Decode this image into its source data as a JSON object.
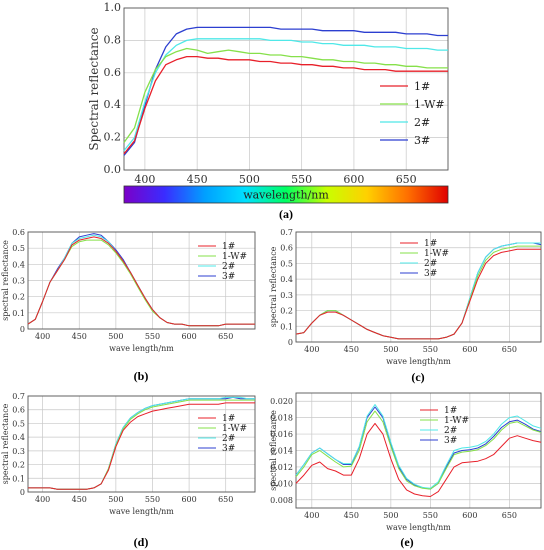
{
  "colors": {
    "s1": "#e8202a",
    "s1w": "#86e04a",
    "s2": "#4fe8e8",
    "s3": "#2c3fd0",
    "grid": "#c8c8c8",
    "frame": "#555555"
  },
  "colorbar": {
    "label": "wavelength/nm",
    "colors": [
      "#7b00c8",
      "#3a2cff",
      "#00a0ff",
      "#00e0ff",
      "#00ff60",
      "#c8ff00",
      "#ffd000",
      "#ff7000",
      "#e00000"
    ]
  },
  "chart_data": [
    {
      "id": "a",
      "panel_label": "(a)",
      "type": "line",
      "xlabel": "",
      "ylabel": "Spectral reflectance",
      "xlim": [
        380,
        690
      ],
      "ylim": [
        0,
        1.0
      ],
      "xticks": [
        400,
        450,
        500,
        550,
        600,
        650
      ],
      "yticks": [
        0.0,
        0.2,
        0.4,
        0.6,
        0.8,
        1.0
      ],
      "ytick_labels": [
        "0.0",
        "0.2",
        "0.4",
        "0.6",
        "0.8",
        "1.0"
      ],
      "grid": true,
      "legend": "right",
      "x": [
        380,
        390,
        400,
        410,
        420,
        430,
        440,
        450,
        460,
        470,
        480,
        490,
        500,
        510,
        520,
        530,
        540,
        550,
        560,
        570,
        580,
        590,
        600,
        610,
        620,
        630,
        640,
        650,
        660,
        670,
        680,
        690
      ],
      "series": [
        {
          "name": "1#",
          "key": "s1",
          "values": [
            0.1,
            0.18,
            0.38,
            0.55,
            0.65,
            0.68,
            0.7,
            0.7,
            0.69,
            0.69,
            0.68,
            0.68,
            0.68,
            0.67,
            0.67,
            0.66,
            0.66,
            0.65,
            0.65,
            0.64,
            0.64,
            0.63,
            0.63,
            0.62,
            0.62,
            0.62,
            0.61,
            0.61,
            0.61,
            0.61,
            0.61,
            0.61
          ]
        },
        {
          "name": "1-W#",
          "key": "s1w",
          "values": [
            0.17,
            0.26,
            0.48,
            0.62,
            0.7,
            0.73,
            0.75,
            0.74,
            0.72,
            0.73,
            0.74,
            0.73,
            0.72,
            0.72,
            0.71,
            0.71,
            0.7,
            0.7,
            0.69,
            0.68,
            0.68,
            0.67,
            0.67,
            0.66,
            0.66,
            0.65,
            0.65,
            0.64,
            0.64,
            0.63,
            0.63,
            0.63
          ]
        },
        {
          "name": "2#",
          "key": "s2",
          "values": [
            0.12,
            0.2,
            0.42,
            0.6,
            0.71,
            0.77,
            0.8,
            0.81,
            0.81,
            0.81,
            0.81,
            0.81,
            0.81,
            0.81,
            0.8,
            0.8,
            0.8,
            0.79,
            0.79,
            0.78,
            0.78,
            0.77,
            0.77,
            0.77,
            0.76,
            0.76,
            0.76,
            0.75,
            0.75,
            0.75,
            0.74,
            0.74
          ]
        },
        {
          "name": "3#",
          "key": "s3",
          "values": [
            0.09,
            0.17,
            0.4,
            0.62,
            0.76,
            0.84,
            0.87,
            0.88,
            0.88,
            0.88,
            0.88,
            0.88,
            0.88,
            0.88,
            0.88,
            0.87,
            0.87,
            0.87,
            0.87,
            0.86,
            0.86,
            0.86,
            0.86,
            0.85,
            0.85,
            0.85,
            0.85,
            0.84,
            0.84,
            0.84,
            0.83,
            0.83
          ]
        }
      ]
    },
    {
      "id": "b",
      "panel_label": "(b)",
      "type": "line",
      "xlabel": "wave length/nm",
      "ylabel": "spectral reflectance",
      "xlim": [
        380,
        690
      ],
      "ylim": [
        0,
        0.6
      ],
      "xticks": [
        400,
        450,
        500,
        550,
        600,
        650
      ],
      "yticks": [
        0,
        0.1,
        0.2,
        0.3,
        0.4,
        0.5,
        0.6
      ],
      "ytick_labels": [
        "0",
        "0.1",
        "0.2",
        "0.3",
        "0.4",
        "0.5",
        "0.6"
      ],
      "grid": true,
      "legend": "right",
      "x": [
        380,
        390,
        400,
        410,
        420,
        430,
        440,
        450,
        460,
        470,
        480,
        490,
        500,
        510,
        520,
        530,
        540,
        550,
        560,
        570,
        580,
        590,
        600,
        610,
        620,
        630,
        640,
        650,
        660,
        670,
        680,
        690
      ],
      "series": [
        {
          "name": "1#",
          "key": "s1",
          "values": [
            0.03,
            0.06,
            0.17,
            0.29,
            0.36,
            0.43,
            0.52,
            0.55,
            0.56,
            0.57,
            0.56,
            0.53,
            0.48,
            0.42,
            0.35,
            0.27,
            0.19,
            0.12,
            0.07,
            0.04,
            0.03,
            0.03,
            0.02,
            0.02,
            0.02,
            0.02,
            0.02,
            0.03,
            0.03,
            0.03,
            0.03,
            0.03
          ]
        },
        {
          "name": "1-W#",
          "key": "s1w",
          "values": [
            0.03,
            0.06,
            0.17,
            0.29,
            0.36,
            0.43,
            0.51,
            0.54,
            0.55,
            0.55,
            0.55,
            0.52,
            0.47,
            0.41,
            0.34,
            0.26,
            0.18,
            0.11,
            0.07,
            0.04,
            0.03,
            0.03,
            0.02,
            0.02,
            0.02,
            0.02,
            0.02,
            0.03,
            0.03,
            0.03,
            0.03,
            0.03
          ]
        },
        {
          "name": "2#",
          "key": "s2",
          "values": [
            0.03,
            0.06,
            0.17,
            0.29,
            0.36,
            0.44,
            0.53,
            0.56,
            0.57,
            0.58,
            0.57,
            0.54,
            0.48,
            0.42,
            0.35,
            0.27,
            0.19,
            0.12,
            0.07,
            0.04,
            0.03,
            0.03,
            0.02,
            0.02,
            0.02,
            0.02,
            0.02,
            0.03,
            0.03,
            0.03,
            0.03,
            0.03
          ]
        },
        {
          "name": "3#",
          "key": "s3",
          "values": [
            0.03,
            0.06,
            0.17,
            0.29,
            0.37,
            0.44,
            0.53,
            0.57,
            0.58,
            0.59,
            0.58,
            0.54,
            0.49,
            0.43,
            0.35,
            0.27,
            0.19,
            0.12,
            0.07,
            0.04,
            0.03,
            0.03,
            0.02,
            0.02,
            0.02,
            0.02,
            0.02,
            0.03,
            0.03,
            0.03,
            0.03,
            0.03
          ]
        }
      ]
    },
    {
      "id": "c",
      "panel_label": "(c)",
      "type": "line",
      "xlabel": "wave length/nm",
      "ylabel": "spectral reflectance",
      "xlim": [
        380,
        690
      ],
      "ylim": [
        0,
        0.7
      ],
      "xticks": [
        400,
        450,
        500,
        550,
        600,
        650
      ],
      "yticks": [
        0,
        0.1,
        0.2,
        0.3,
        0.4,
        0.5,
        0.6,
        0.7
      ],
      "ytick_labels": [
        "0",
        "0.1",
        "0.2",
        "0.3",
        "0.4",
        "0.5",
        "0.6",
        "0.7"
      ],
      "grid": true,
      "legend": "left",
      "x": [
        380,
        390,
        400,
        410,
        420,
        430,
        440,
        450,
        460,
        470,
        480,
        490,
        500,
        510,
        520,
        530,
        540,
        550,
        560,
        570,
        580,
        590,
        600,
        610,
        620,
        630,
        640,
        650,
        660,
        670,
        680,
        690
      ],
      "series": [
        {
          "name": "1#",
          "key": "s1",
          "values": [
            0.05,
            0.06,
            0.12,
            0.17,
            0.19,
            0.19,
            0.17,
            0.14,
            0.11,
            0.08,
            0.06,
            0.04,
            0.03,
            0.02,
            0.02,
            0.02,
            0.02,
            0.02,
            0.02,
            0.03,
            0.05,
            0.12,
            0.26,
            0.4,
            0.5,
            0.55,
            0.57,
            0.58,
            0.59,
            0.59,
            0.59,
            0.59
          ]
        },
        {
          "name": "1-W#",
          "key": "s1w",
          "values": [
            0.05,
            0.06,
            0.12,
            0.17,
            0.2,
            0.2,
            0.17,
            0.14,
            0.11,
            0.08,
            0.06,
            0.04,
            0.03,
            0.02,
            0.02,
            0.02,
            0.02,
            0.02,
            0.02,
            0.03,
            0.05,
            0.12,
            0.27,
            0.42,
            0.52,
            0.57,
            0.59,
            0.6,
            0.61,
            0.61,
            0.61,
            0.61
          ]
        },
        {
          "name": "2#",
          "key": "s2",
          "values": [
            0.05,
            0.06,
            0.12,
            0.17,
            0.2,
            0.2,
            0.17,
            0.14,
            0.11,
            0.08,
            0.06,
            0.04,
            0.03,
            0.02,
            0.02,
            0.02,
            0.02,
            0.02,
            0.02,
            0.03,
            0.05,
            0.12,
            0.28,
            0.44,
            0.54,
            0.59,
            0.61,
            0.62,
            0.63,
            0.63,
            0.63,
            0.63
          ]
        },
        {
          "name": "3#",
          "key": "s3",
          "values": [
            0.05,
            0.06,
            0.12,
            0.17,
            0.2,
            0.2,
            0.17,
            0.14,
            0.11,
            0.08,
            0.06,
            0.04,
            0.03,
            0.02,
            0.02,
            0.02,
            0.02,
            0.02,
            0.02,
            0.03,
            0.05,
            0.12,
            0.28,
            0.44,
            0.54,
            0.59,
            0.61,
            0.62,
            0.63,
            0.63,
            0.63,
            0.62
          ]
        }
      ]
    },
    {
      "id": "d",
      "panel_label": "(d)",
      "type": "line",
      "xlabel": "wave length/nm",
      "ylabel": "spectral reflectance",
      "xlim": [
        380,
        690
      ],
      "ylim": [
        0,
        0.7
      ],
      "xticks": [
        400,
        450,
        500,
        550,
        600,
        650
      ],
      "yticks": [
        0,
        0.1,
        0.2,
        0.3,
        0.4,
        0.5,
        0.6,
        0.7
      ],
      "ytick_labels": [
        "0",
        "0.1",
        "0.2",
        "0.3",
        "0.4",
        "0.5",
        "0.6",
        "0.7"
      ],
      "grid": true,
      "legend": "right",
      "x": [
        380,
        390,
        400,
        410,
        420,
        430,
        440,
        450,
        460,
        470,
        480,
        490,
        500,
        510,
        520,
        530,
        540,
        550,
        560,
        570,
        580,
        590,
        600,
        610,
        620,
        630,
        640,
        650,
        660,
        670,
        680,
        690
      ],
      "series": [
        {
          "name": "1#",
          "key": "s1",
          "values": [
            0.03,
            0.03,
            0.03,
            0.03,
            0.02,
            0.02,
            0.02,
            0.02,
            0.02,
            0.03,
            0.06,
            0.16,
            0.33,
            0.45,
            0.51,
            0.55,
            0.57,
            0.59,
            0.6,
            0.61,
            0.62,
            0.63,
            0.64,
            0.64,
            0.64,
            0.64,
            0.64,
            0.65,
            0.65,
            0.65,
            0.65,
            0.65
          ]
        },
        {
          "name": "1-W#",
          "key": "s1w",
          "values": [
            0.03,
            0.03,
            0.03,
            0.03,
            0.02,
            0.02,
            0.02,
            0.02,
            0.02,
            0.03,
            0.06,
            0.17,
            0.34,
            0.46,
            0.53,
            0.57,
            0.6,
            0.62,
            0.63,
            0.64,
            0.65,
            0.66,
            0.67,
            0.67,
            0.67,
            0.67,
            0.67,
            0.67,
            0.67,
            0.67,
            0.67,
            0.67
          ]
        },
        {
          "name": "2#",
          "key": "s2",
          "values": [
            0.03,
            0.03,
            0.03,
            0.03,
            0.02,
            0.02,
            0.02,
            0.02,
            0.02,
            0.03,
            0.06,
            0.17,
            0.35,
            0.47,
            0.54,
            0.58,
            0.61,
            0.63,
            0.64,
            0.65,
            0.66,
            0.67,
            0.68,
            0.68,
            0.68,
            0.68,
            0.68,
            0.69,
            0.69,
            0.69,
            0.68,
            0.68
          ]
        },
        {
          "name": "3#",
          "key": "s3",
          "values": [
            0.03,
            0.03,
            0.03,
            0.03,
            0.02,
            0.02,
            0.02,
            0.02,
            0.02,
            0.03,
            0.06,
            0.17,
            0.35,
            0.47,
            0.54,
            0.58,
            0.61,
            0.63,
            0.64,
            0.65,
            0.66,
            0.67,
            0.68,
            0.68,
            0.68,
            0.68,
            0.68,
            0.68,
            0.69,
            0.68,
            0.68,
            0.68
          ]
        }
      ]
    },
    {
      "id": "e",
      "panel_label": "(e)",
      "type": "line",
      "xlabel": "wave length/nm",
      "ylabel": "spectral reflectance",
      "xlim": [
        380,
        690
      ],
      "ylim": [
        0.007,
        0.021
      ],
      "xticks": [
        400,
        450,
        500,
        550,
        600,
        650
      ],
      "yticks": [
        0.008,
        0.01,
        0.012,
        0.014,
        0.016,
        0.018,
        0.02
      ],
      "ytick_labels": [
        "0.008",
        "0.010",
        "0.012",
        "0.014",
        "0.016",
        "0.018",
        "0.020"
      ],
      "grid": true,
      "legend": "center",
      "x": [
        380,
        390,
        400,
        410,
        420,
        430,
        440,
        450,
        460,
        470,
        480,
        490,
        500,
        510,
        520,
        530,
        540,
        550,
        560,
        570,
        580,
        590,
        600,
        610,
        620,
        630,
        640,
        650,
        660,
        670,
        680,
        690
      ],
      "series": [
        {
          "name": "1#",
          "key": "s1",
          "values": [
            0.01,
            0.011,
            0.0122,
            0.0126,
            0.0118,
            0.0115,
            0.011,
            0.011,
            0.013,
            0.016,
            0.0173,
            0.016,
            0.013,
            0.0105,
            0.0092,
            0.0087,
            0.0085,
            0.0084,
            0.009,
            0.0105,
            0.012,
            0.0125,
            0.0126,
            0.0127,
            0.013,
            0.0135,
            0.0145,
            0.0155,
            0.0158,
            0.0155,
            0.0152,
            0.015
          ]
        },
        {
          "name": "1-W#",
          "key": "s1w",
          "values": [
            0.0108,
            0.012,
            0.0135,
            0.014,
            0.0133,
            0.0126,
            0.012,
            0.0121,
            0.014,
            0.0175,
            0.0188,
            0.0175,
            0.0145,
            0.0118,
            0.0103,
            0.0097,
            0.0094,
            0.0093,
            0.01,
            0.0118,
            0.0135,
            0.0138,
            0.0139,
            0.0141,
            0.0146,
            0.0154,
            0.0165,
            0.0173,
            0.0175,
            0.017,
            0.0165,
            0.0162
          ]
        },
        {
          "name": "2#",
          "key": "s2",
          "values": [
            0.011,
            0.0123,
            0.0137,
            0.0143,
            0.0136,
            0.0129,
            0.0124,
            0.0124,
            0.0145,
            0.0182,
            0.0196,
            0.0182,
            0.015,
            0.0122,
            0.0106,
            0.0099,
            0.0095,
            0.0094,
            0.0102,
            0.0122,
            0.014,
            0.0143,
            0.0144,
            0.0146,
            0.0151,
            0.016,
            0.0172,
            0.018,
            0.0182,
            0.0176,
            0.017,
            0.0167
          ]
        },
        {
          "name": "3#",
          "key": "s3",
          "values": [
            0.011,
            0.0123,
            0.0137,
            0.0143,
            0.0136,
            0.0129,
            0.0123,
            0.0123,
            0.0144,
            0.018,
            0.0193,
            0.018,
            0.0148,
            0.012,
            0.0105,
            0.0098,
            0.0095,
            0.0093,
            0.01,
            0.012,
            0.0137,
            0.014,
            0.0141,
            0.0143,
            0.0148,
            0.0157,
            0.0168,
            0.0175,
            0.0177,
            0.0172,
            0.0166,
            0.0163
          ]
        }
      ]
    }
  ]
}
